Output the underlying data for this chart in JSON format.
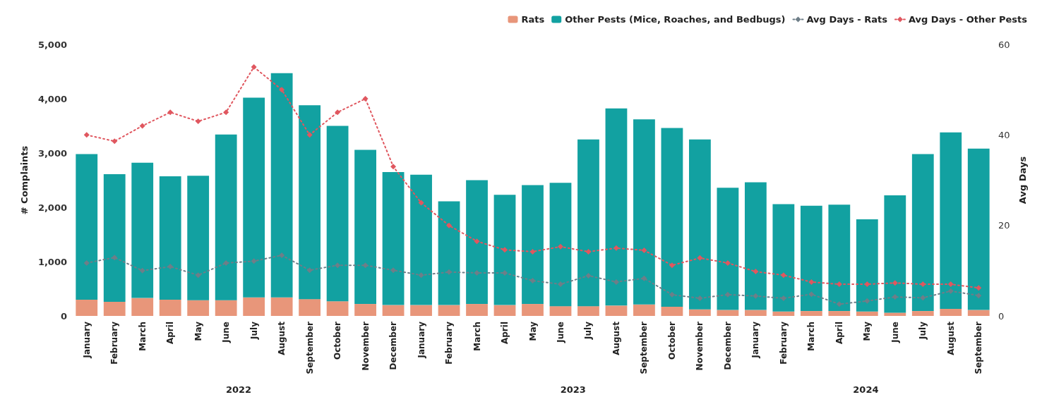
{
  "chart_data": {
    "type": "bar",
    "stacked": true,
    "categories": [
      "January",
      "February",
      "March",
      "April",
      "May",
      "June",
      "July",
      "August",
      "September",
      "October",
      "November",
      "December",
      "January",
      "February",
      "March",
      "April",
      "May",
      "June",
      "July",
      "August",
      "September",
      "October",
      "November",
      "December",
      "January",
      "February",
      "March",
      "April",
      "May",
      "June",
      "July",
      "August",
      "September"
    ],
    "series": [
      {
        "name": "Rats",
        "color": "#e8967a",
        "values": [
          300,
          260,
          330,
          300,
          290,
          290,
          340,
          340,
          310,
          270,
          220,
          200,
          200,
          200,
          220,
          200,
          220,
          180,
          180,
          190,
          210,
          170,
          120,
          110,
          110,
          80,
          90,
          90,
          80,
          60,
          90,
          130,
          110
        ]
      },
      {
        "name": "Other Pests (Mice, Roaches, and Bedbugs)",
        "color": "#12a1a1",
        "values": [
          2680,
          2350,
          2490,
          2270,
          2290,
          3050,
          3680,
          4130,
          3570,
          3230,
          2840,
          2450,
          2400,
          1910,
          2280,
          2030,
          2190,
          2270,
          3070,
          3630,
          3410,
          3290,
          3130,
          2250,
          2350,
          1980,
          1940,
          1960,
          1700,
          2160,
          2890,
          3250,
          2970
        ]
      },
      {
        "name": "Avg Days - Rats",
        "type": "line",
        "axis": "y2",
        "color": "#6e7e88",
        "values": [
          11.7,
          12.9,
          10,
          10.9,
          9,
          11.7,
          12.1,
          13.4,
          10.1,
          11.2,
          11.2,
          10.1,
          9,
          9.7,
          9.5,
          9.5,
          7.8,
          7,
          8.9,
          7.5,
          8.3,
          4.7,
          3.9,
          4.7,
          4.4,
          3.9,
          4.8,
          2.6,
          3.3,
          4.2,
          4,
          5.5,
          4.5
        ]
      },
      {
        "name": "Avg Days - Other Pests",
        "type": "line",
        "axis": "y2",
        "color": "#e0575f",
        "values": [
          40,
          38.6,
          42,
          45,
          43,
          45,
          55,
          50,
          40,
          45,
          48,
          33,
          25,
          20,
          16.5,
          14.6,
          14.2,
          15.3,
          14.2,
          15,
          14.5,
          11.2,
          12.8,
          11.7,
          9.8,
          9,
          7.5,
          7,
          7,
          7.3,
          7,
          7,
          6.2
        ]
      }
    ],
    "ylabel": "# Complaints",
    "y2label": "Avg Days",
    "ylim": [
      0,
      5000
    ],
    "yticks": [
      0,
      {
        "value": 1000,
        "label": "1,000"
      },
      {
        "value": 2000,
        "label": "2,000"
      },
      {
        "value": 3000,
        "label": "3,000"
      },
      {
        "value": 4000,
        "label": "4,000"
      },
      {
        "value": 5000,
        "label": "5,000"
      }
    ],
    "y2lim": [
      0,
      60
    ],
    "y2ticks": [
      0,
      20,
      40,
      60
    ],
    "annotations": [
      "2022",
      "2023",
      "2024"
    ],
    "marker": "diamond",
    "line_style": "dotted",
    "legend": "top right",
    "grid": false
  }
}
